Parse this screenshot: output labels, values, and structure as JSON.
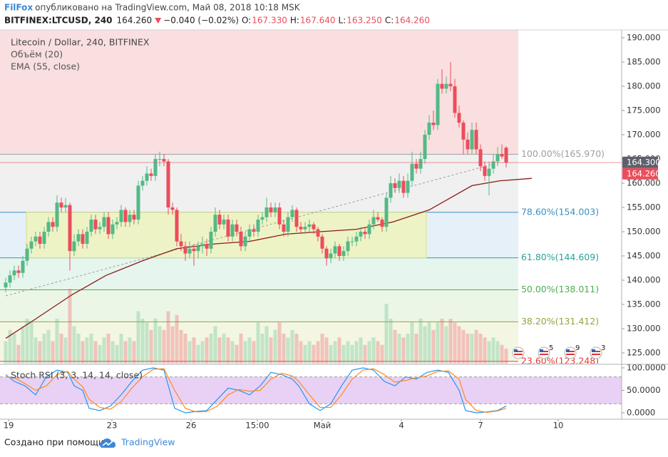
{
  "header": {
    "author": "FilFox",
    "published": "опубликовано на TradingView.com, Май 08, 2018 10:18 MSK",
    "symbol": "BITFINEX:LTCUSD, 240",
    "price": "164.260",
    "change": "−0.040 (−0.02%)",
    "ohlc": [
      {
        "key": "O:",
        "value": "167.330"
      },
      {
        "key": "H:",
        "value": "167.640"
      },
      {
        "key": "L:",
        "value": "163.250"
      },
      {
        "key": "C:",
        "value": "164.260"
      }
    ]
  },
  "chart_data": [
    {
      "type": "candlestick",
      "title": "Litecoin / Dollar, 240, BITFINEX",
      "xlim": [
        -1.333,
        144
      ],
      "xticks": [
        {
          "value": 0.67,
          "label": "19"
        },
        {
          "value": 24.83,
          "label": "23"
        },
        {
          "value": 43.33,
          "label": "26"
        },
        {
          "value": 58.83,
          "label": "15:00"
        },
        {
          "value": 74,
          "label": "Май"
        },
        {
          "value": 92.5,
          "label": "4"
        },
        {
          "value": 111,
          "label": "7"
        },
        {
          "value": 129.17,
          "label": "10"
        }
      ],
      "ylim": [
        122.79,
        191.62
      ],
      "yticks": [
        {
          "value": 190,
          "label": "190.000"
        },
        {
          "value": 185,
          "label": "185.000"
        },
        {
          "value": 180,
          "label": "180.000"
        },
        {
          "value": 175,
          "label": "175.000"
        },
        {
          "value": 170,
          "label": "170.000"
        },
        {
          "value": 165,
          "label": "165.000"
        },
        {
          "value": 160,
          "label": "160.000"
        },
        {
          "value": 155,
          "label": "155.000"
        },
        {
          "value": 150,
          "label": "150.000"
        },
        {
          "value": 145,
          "label": "145.000"
        },
        {
          "value": 140,
          "label": "140.000"
        },
        {
          "value": 135,
          "label": "135.000"
        },
        {
          "value": 130,
          "label": "130.000"
        },
        {
          "value": 125,
          "label": "125.000"
        }
      ],
      "up_color": "#53b987",
      "down_color": "#eb4d5c",
      "open": [
        138.5,
        139.5,
        141,
        142,
        141.5,
        144,
        146.5,
        148,
        149,
        147.5,
        150,
        152,
        151,
        156,
        155,
        155.5,
        146,
        148,
        149.5,
        147.5,
        150,
        152.5,
        150.5,
        151,
        153,
        149.5,
        151.5,
        152,
        154.5,
        152,
        153.5,
        152.5,
        159.5,
        160.5,
        162,
        161.5,
        165,
        165,
        164.5,
        155,
        154.5,
        148,
        147,
        145.5,
        146.5,
        146,
        147,
        147.5,
        146.5,
        150,
        153.5,
        151.5,
        152.5,
        149,
        151.5,
        150,
        147,
        149,
        150.5,
        150,
        152.5,
        153,
        155,
        154,
        155,
        151.5,
        150,
        153,
        154.5,
        151,
        150.5,
        151,
        151.5,
        150.5,
        149,
        146.5,
        144.5,
        145.5,
        147,
        145,
        146,
        148,
        148,
        149,
        150,
        149.5,
        151.5,
        153,
        152.5,
        151,
        157,
        160,
        159,
        160.5,
        158,
        160.5,
        164,
        163,
        165,
        170,
        172.5,
        172,
        180.5,
        179.5,
        180.5,
        180,
        174.5,
        172.5,
        169,
        167,
        171,
        167,
        163.5,
        161.5,
        163,
        164.5,
        166,
        167.33
      ],
      "high": [
        140.5,
        142,
        143,
        143,
        145,
        147.5,
        149,
        150,
        150,
        151,
        153,
        153,
        157.5,
        157,
        157,
        156,
        149.5,
        150.5,
        150.5,
        151,
        153.5,
        153.5,
        152,
        154,
        154,
        152.5,
        153,
        155.5,
        155,
        154.5,
        154.5,
        160.5,
        161.5,
        163.5,
        163,
        166,
        166.5,
        166,
        165,
        156,
        155,
        149.5,
        148,
        148,
        147.5,
        148,
        149,
        148.5,
        151,
        155,
        154.5,
        153.5,
        153.5,
        152.5,
        152.5,
        151,
        150,
        151.5,
        151.5,
        153.5,
        154,
        157,
        156,
        156,
        156,
        152.5,
        154,
        155.5,
        155,
        152,
        152,
        152.5,
        152,
        151,
        149.5,
        147,
        146.5,
        148,
        147.5,
        147,
        149,
        149,
        150,
        151,
        151,
        152.5,
        154.5,
        154,
        153,
        158,
        161.5,
        161,
        162,
        161.5,
        162,
        166.5,
        165,
        166.5,
        171,
        174,
        175,
        181.5,
        183.5,
        182,
        185,
        181.5,
        176,
        173,
        170.5,
        172.5,
        172.5,
        168,
        164.5,
        164.5,
        166,
        167.5,
        168,
        167.64
      ],
      "low": [
        137.5,
        138.5,
        140,
        140.5,
        140.5,
        143,
        145.5,
        147,
        146.5,
        146.5,
        149,
        150,
        150,
        154,
        154,
        142,
        145,
        147,
        146.5,
        146.5,
        149,
        149.5,
        149.5,
        150,
        148.5,
        148.5,
        150.5,
        151,
        151,
        151,
        151.5,
        151.5,
        158.5,
        159.5,
        160.5,
        160.5,
        163.5,
        163.5,
        153.5,
        153.5,
        147,
        146,
        144,
        144.5,
        143,
        144.5,
        145.5,
        145,
        145.5,
        149,
        150.5,
        150.5,
        148,
        148,
        149,
        146,
        146,
        148,
        149,
        149,
        151.5,
        152,
        153,
        153,
        150.5,
        149,
        149,
        152,
        150,
        149.5,
        149.5,
        150,
        149.5,
        148,
        145.5,
        143,
        143.5,
        144.5,
        144,
        144,
        145,
        147,
        147,
        148,
        148.5,
        148.5,
        150.5,
        152,
        150,
        150,
        156,
        158,
        158,
        157,
        157,
        159.5,
        162,
        162,
        164,
        169,
        171,
        171,
        178.5,
        178.5,
        179,
        173.5,
        171.5,
        166,
        166,
        166,
        166,
        162.5,
        160.5,
        157.5,
        162,
        163.5,
        165,
        163.25
      ],
      "close": [
        139.5,
        141,
        142,
        141.5,
        144,
        146.5,
        148,
        149,
        147.5,
        150,
        152,
        151,
        156,
        155,
        155.5,
        146,
        148,
        149.5,
        147.5,
        150,
        152.5,
        150.5,
        151,
        153,
        149.5,
        151.5,
        152,
        154.5,
        152,
        153.5,
        152.5,
        159.5,
        160.5,
        162,
        161.5,
        165,
        165,
        164.5,
        155,
        154.5,
        148,
        147,
        145.5,
        146.5,
        146,
        147,
        147.5,
        146.5,
        150,
        153.5,
        151.5,
        152.5,
        149,
        151.5,
        150,
        147,
        149,
        150.5,
        150,
        152.5,
        153,
        155,
        154,
        155,
        151.5,
        150,
        153,
        154.5,
        151,
        150.5,
        151,
        151.5,
        150.5,
        149,
        146.5,
        144.5,
        145.5,
        147,
        145,
        146,
        148,
        148,
        149,
        150,
        149.5,
        151.5,
        153,
        152.5,
        151,
        157,
        160,
        159,
        160.5,
        158,
        160.5,
        164,
        163,
        165,
        170,
        172.5,
        172,
        180.5,
        179.5,
        180.5,
        180,
        174.5,
        172.5,
        169,
        167,
        171,
        167,
        163.5,
        161.5,
        163,
        164.5,
        166,
        165.5,
        164.26
      ],
      "volume": {
        "name": "Объём (20)",
        "ylim": [
          0,
          446
        ],
        "up_color": "rgba(83,185,135,0.3)",
        "down_color": "rgba(235,77,92,0.3)",
        "values": [
          30,
          45,
          40,
          25,
          50,
          60,
          55,
          35,
          30,
          40,
          45,
          30,
          60,
          40,
          35,
          100,
          50,
          40,
          30,
          35,
          40,
          30,
          25,
          35,
          40,
          30,
          25,
          40,
          30,
          35,
          30,
          70,
          60,
          55,
          45,
          60,
          50,
          45,
          70,
          50,
          65,
          45,
          40,
          30,
          35,
          25,
          30,
          35,
          40,
          50,
          35,
          40,
          35,
          30,
          25,
          40,
          30,
          35,
          30,
          55,
          40,
          50,
          35,
          45,
          55,
          40,
          35,
          45,
          40,
          30,
          25,
          30,
          25,
          30,
          40,
          35,
          25,
          30,
          35,
          25,
          30,
          25,
          30,
          35,
          25,
          30,
          35,
          30,
          25,
          80,
          60,
          45,
          40,
          35,
          40,
          55,
          40,
          60,
          50,
          55,
          45,
          55,
          60,
          50,
          60,
          55,
          50,
          45,
          40,
          40,
          45,
          40,
          35,
          30,
          35,
          30,
          25,
          20
        ]
      },
      "ema": {
        "name": "EMA (55, close)",
        "color": "#8b1a1a",
        "x": [
          0,
          7,
          15.5,
          23.5,
          32,
          40,
          49,
          57,
          65.5,
          73.5,
          82,
          90.5,
          99,
          104,
          109,
          115.5,
          123
        ],
        "values": [
          128,
          132,
          137,
          141,
          144,
          146.5,
          147.5,
          148,
          149.5,
          150,
          150.5,
          152,
          154.5,
          157,
          159.5,
          160.5,
          161
        ]
      },
      "trendline": {
        "x": [
          0,
          115.3
        ],
        "y": [
          136.76,
          164.26
        ],
        "color": "#9e9e9e"
      },
      "rectangle": {
        "x": [
          4.83,
          98.33
        ],
        "y": [
          144.609,
          154.003
        ],
        "fill": "rgba(240,244,180,0.75)",
        "stroke": "#d9de8e"
      },
      "fib": {
        "x_end": 119.83,
        "upper_fill": "#f9dfdf",
        "levels": [
          {
            "label": "100.00%(165.970)",
            "value": 165.97,
            "color": "#9e9e9e",
            "fill": "#f0f0f0"
          },
          {
            "label": "78.60%(154.003)",
            "value": 154.003,
            "color": "#3a8fc2",
            "fill": "#e6f0f9"
          },
          {
            "label": "61.80%(144.609)",
            "value": 144.609,
            "color": "#26a69a",
            "fill": "#e6f5ee"
          },
          {
            "label": "50.00%(138.011)",
            "value": 138.011,
            "color": "#4caf50",
            "fill": "#ecf6e6"
          },
          {
            "label": "38.20%(131.412)",
            "value": 131.412,
            "color": "#8ea83a",
            "fill": "#f3f6e3"
          },
          {
            "label": "23.60%(123.248)",
            "value": 123.248,
            "color": "#e53935",
            "fill": "#f9e8e8"
          }
        ]
      },
      "price_labels": [
        {
          "value": 164.3,
          "label": "164.300",
          "color": "#5d606b"
        },
        {
          "value": 164.26,
          "label": "164.260",
          "color": "#eb4d5c"
        }
      ],
      "events": {
        "x": [
          119.83,
          125.83,
          132,
          138
        ],
        "labels": [
          null,
          "5",
          "9",
          "3"
        ]
      }
    },
    {
      "type": "line",
      "title": "Stoch RSI (3, 3, 14, 14, close)",
      "xlim": [
        -1.333,
        144
      ],
      "ylim": [
        -14.3,
        109.5
      ],
      "yticks": [
        {
          "value": 100,
          "label": "100.0000"
        },
        {
          "value": 50,
          "label": "50.0000"
        },
        {
          "value": 0,
          "label": "0.0000"
        }
      ],
      "band": {
        "values": [
          20,
          80
        ],
        "fill": "rgba(200,140,230,0.4)",
        "color": "#9e9e9e"
      },
      "x": [
        0,
        2,
        4.5,
        7,
        9.5,
        12,
        14.5,
        16,
        18,
        19.5,
        22,
        24.5,
        27,
        29.5,
        32,
        34.5,
        37,
        39.5,
        42,
        44.5,
        47,
        49.5,
        52,
        54.5,
        57,
        59.5,
        62,
        64.5,
        67,
        68.5,
        71,
        73.5,
        76,
        78.5,
        81,
        83.5,
        86,
        88.5,
        91,
        93.5,
        96,
        98.5,
        101,
        103.5,
        106,
        107.5,
        110,
        112.5,
        115,
        117
      ],
      "series": [
        {
          "color": "#2196f3",
          "values": [
            85,
            70,
            60,
            40,
            80,
            95,
            90,
            60,
            50,
            10,
            5,
            15,
            40,
            70,
            95,
            100,
            95,
            10,
            0,
            3,
            5,
            30,
            55,
            50,
            40,
            60,
            90,
            85,
            75,
            60,
            20,
            5,
            20,
            60,
            95,
            100,
            95,
            70,
            60,
            80,
            75,
            90,
            95,
            90,
            50,
            5,
            0,
            2,
            5,
            15
          ]
        },
        {
          "color": "#ff8a1e",
          "values": [
            80,
            78,
            65,
            50,
            60,
            85,
            92,
            75,
            58,
            30,
            12,
            8,
            25,
            55,
            80,
            97,
            98,
            50,
            10,
            2,
            3,
            15,
            40,
            52,
            48,
            50,
            75,
            88,
            82,
            70,
            40,
            12,
            12,
            40,
            75,
            95,
            98,
            85,
            68,
            72,
            78,
            82,
            92,
            93,
            75,
            30,
            5,
            1,
            4,
            10
          ]
        }
      ]
    }
  ],
  "footer": {
    "text": "Создано при помощи",
    "brand": "TradingView"
  }
}
